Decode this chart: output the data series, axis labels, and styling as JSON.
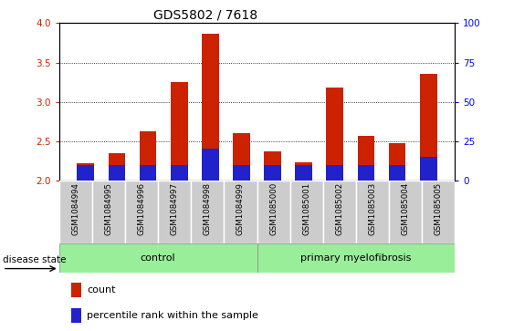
{
  "title": "GDS5802 / 7618",
  "categories": [
    "GSM1084994",
    "GSM1084995",
    "GSM1084996",
    "GSM1084997",
    "GSM1084998",
    "GSM1084999",
    "GSM1085000",
    "GSM1085001",
    "GSM1085002",
    "GSM1085003",
    "GSM1085004",
    "GSM1085005"
  ],
  "count_values": [
    2.22,
    2.35,
    2.62,
    3.25,
    3.87,
    2.6,
    2.37,
    2.23,
    3.18,
    2.57,
    2.47,
    3.35
  ],
  "percentile_values": [
    10,
    10,
    10,
    10,
    20,
    10,
    10,
    10,
    10,
    10,
    10,
    15
  ],
  "bar_bottom": 2.0,
  "count_color": "#CC2200",
  "percentile_color": "#2222CC",
  "ylim": [
    2.0,
    4.0
  ],
  "yticks": [
    2.0,
    2.5,
    3.0,
    3.5,
    4.0
  ],
  "right_yticks": [
    0,
    25,
    50,
    75,
    100
  ],
  "right_ylim": [
    0,
    100
  ],
  "n_control": 6,
  "n_disease": 6,
  "control_label": "control",
  "disease_label": "primary myelofibrosis",
  "disease_state_label": "disease state",
  "group_bg_color": "#99EE99",
  "xlabel_bg_color": "#CCCCCC",
  "legend_count": "count",
  "legend_percentile": "percentile rank within the sample",
  "title_fontsize": 10,
  "bar_width": 0.55
}
